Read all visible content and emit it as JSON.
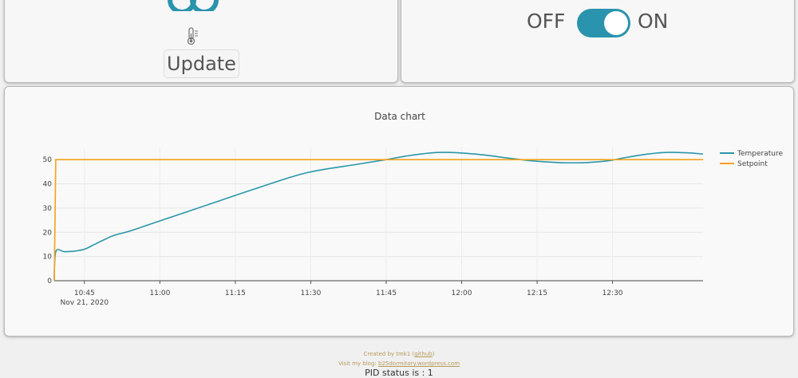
{
  "controls": {
    "update_label": "Update",
    "off_label": "OFF",
    "on_label": "ON",
    "switch_state": "on"
  },
  "colors": {
    "accent": "#2a93ad",
    "temperature": "#2a96a8",
    "setpoint": "#f4a21b"
  },
  "footer": {
    "created_prefix": "Created by tmk1 (",
    "created_link": "github",
    "created_suffix": ")",
    "blog_prefix": "Visit my blog: ",
    "blog_link": "b25dormitory.wordpress.com",
    "pid_status": "PID status is : 1"
  },
  "chart_data": {
    "type": "line",
    "title": "Data chart",
    "xlabel": "",
    "ylabel": "",
    "x_start": "10:39",
    "x_end": "12:48",
    "xlim_minutes": [
      0,
      129
    ],
    "ylim": [
      0,
      55
    ],
    "y_ticks": [
      0,
      10,
      20,
      30,
      40,
      50
    ],
    "x_tick_labels": [
      "10:45",
      "11:00",
      "11:15",
      "11:30",
      "11:45",
      "12:00",
      "12:15",
      "12:30"
    ],
    "x_ticks_minutes": [
      6,
      21,
      36,
      51,
      66,
      81,
      96,
      111
    ],
    "date_label": "Nov 21, 2020",
    "grid": true,
    "legend": "right",
    "series": [
      {
        "name": "Temperature",
        "x": [
          0,
          0.3,
          2,
          4,
          6,
          8,
          10,
          12,
          15,
          20,
          30,
          40,
          50,
          60,
          66,
          70,
          75,
          78,
          82,
          86,
          90,
          95,
          100,
          103,
          106,
          110,
          114,
          118,
          122,
          126,
          129
        ],
        "y": [
          0,
          12,
          12,
          12.2,
          13,
          15,
          17,
          18.8,
          20.5,
          24,
          31,
          38,
          44.5,
          48,
          50,
          51.5,
          52.8,
          53,
          52.6,
          51.8,
          50.7,
          49.5,
          48.8,
          48.7,
          48.8,
          49.5,
          51,
          52.3,
          53,
          52.8,
          52.3
        ]
      },
      {
        "name": "Setpoint",
        "x": [
          0,
          0.3,
          129
        ],
        "y": [
          0,
          50,
          50
        ]
      }
    ]
  }
}
